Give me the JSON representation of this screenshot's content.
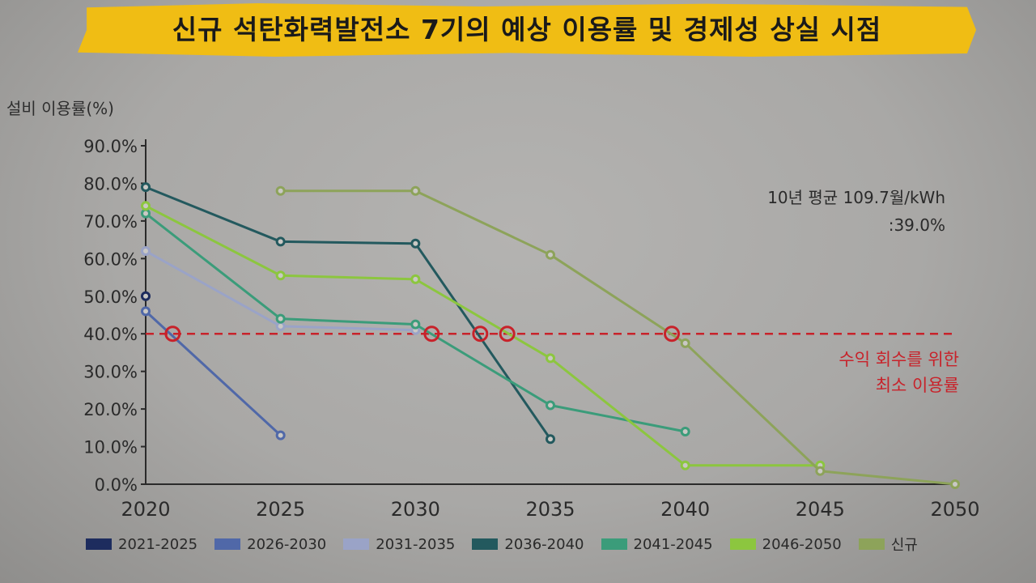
{
  "title": "신규 석탄화력발전소 7기의 예상 이용률 및 경제성 상실 시점",
  "ylabel": "설비 이용률(%)",
  "annotation_lines": [
    "10년 평균 109.7월/kWh",
    ":39.0%"
  ],
  "threshold_lines": [
    "수익 회수를 위한",
    "최소 이용률"
  ],
  "colors": {
    "threshold": "#c8222a",
    "banner": "#f0bd14"
  },
  "chart_data": {
    "type": "line",
    "ylabel": "설비 이용률(%)",
    "ylim": [
      0,
      90
    ],
    "xlim": [
      2020,
      2050
    ],
    "y_ticks": [
      0,
      10,
      20,
      30,
      40,
      50,
      60,
      70,
      80,
      90
    ],
    "y_tick_labels": [
      "0.0%",
      "10.0%",
      "20.0%",
      "30.0%",
      "40.0%",
      "50.0%",
      "60.0%",
      "70.0%",
      "80.0%",
      "90.0%"
    ],
    "x_ticks": [
      2020,
      2025,
      2030,
      2035,
      2040,
      2045,
      2050
    ],
    "x_tick_labels": [
      "2020",
      "2025",
      "2030",
      "2035",
      "2040",
      "2045",
      "2050"
    ],
    "threshold": 40,
    "threshold_crossings": [
      2021,
      2030.6,
      2032.4,
      2033.4,
      2039.5
    ],
    "legend_position": "bottom",
    "series": [
      {
        "name": "2021-2025",
        "color": "#1d2c5e",
        "x": [
          2020
        ],
        "y": [
          50
        ]
      },
      {
        "name": "2026-2030",
        "color": "#5068a8",
        "x": [
          2020,
          2025
        ],
        "y": [
          46,
          13
        ]
      },
      {
        "name": "2031-2035",
        "color": "#9aa3c7",
        "x": [
          2020,
          2025,
          2030
        ],
        "y": [
          62,
          42,
          41
        ]
      },
      {
        "name": "2036-2040",
        "color": "#23595e",
        "x": [
          2020,
          2025,
          2030,
          2035
        ],
        "y": [
          79,
          64.5,
          64,
          12
        ]
      },
      {
        "name": "2041-2045",
        "color": "#3b9c7a",
        "x": [
          2020,
          2025,
          2030,
          2035,
          2040
        ],
        "y": [
          72,
          44,
          42.5,
          21,
          14
        ]
      },
      {
        "name": "2046-2050",
        "color": "#8cc63f",
        "x": [
          2020,
          2025,
          2030,
          2035,
          2040,
          2045
        ],
        "y": [
          74,
          55.5,
          54.5,
          33.5,
          5,
          5
        ]
      },
      {
        "name": "신규",
        "color": "#8da35a",
        "x": [
          2025,
          2030,
          2035,
          2040,
          2045,
          2050
        ],
        "y": [
          78,
          78,
          61,
          37.5,
          3.5,
          0
        ]
      }
    ]
  }
}
